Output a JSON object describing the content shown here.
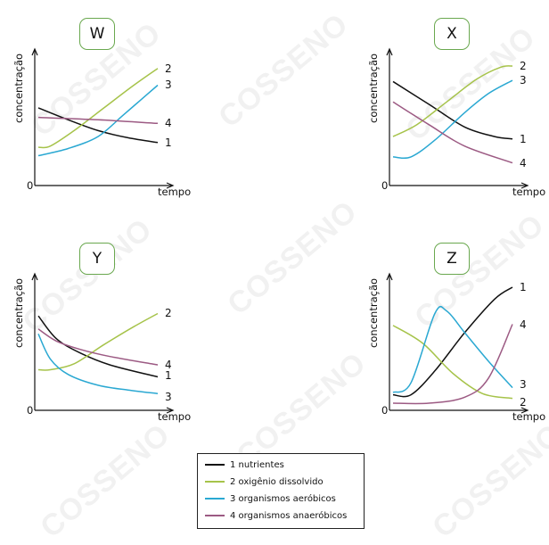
{
  "watermark": "COSSENO",
  "axis": {
    "ylabel": "concentração",
    "xlabel": "tempo",
    "origin": "0"
  },
  "colors": {
    "1": "#111111",
    "2": "#a6c34a",
    "3": "#2aa8d2",
    "4": "#9c5a83",
    "badge_border": "#6aa84f"
  },
  "legend": [
    {
      "id": "1",
      "label": "1 nutrientes"
    },
    {
      "id": "2",
      "label": "2 oxigênio dissolvido"
    },
    {
      "id": "3",
      "label": "3 organismos aeróbicos"
    },
    {
      "id": "4",
      "label": "4 organismos anaeróbicos"
    }
  ],
  "chart_data": [
    {
      "type": "line",
      "title": "W",
      "xlabel": "tempo",
      "ylabel": "concentração",
      "xlim": [
        0,
        100
      ],
      "ylim": [
        0,
        100
      ],
      "grid": false,
      "series": [
        {
          "name": "1",
          "x": [
            0,
            25,
            50,
            75,
            100
          ],
          "y": [
            62,
            52,
            43,
            37,
            33
          ]
        },
        {
          "name": "2",
          "x": [
            0,
            10,
            30,
            55,
            80,
            100
          ],
          "y": [
            29,
            30,
            43,
            62,
            81,
            95
          ]
        },
        {
          "name": "3",
          "x": [
            0,
            25,
            50,
            70,
            85,
            100
          ],
          "y": [
            22,
            28,
            38,
            55,
            68,
            81
          ]
        },
        {
          "name": "4",
          "x": [
            0,
            50,
            100
          ],
          "y": [
            54,
            52,
            49
          ]
        }
      ]
    },
    {
      "type": "line",
      "title": "X",
      "xlabel": "tempo",
      "ylabel": "concentração",
      "xlim": [
        0,
        100
      ],
      "ylim": [
        0,
        100
      ],
      "grid": false,
      "series": [
        {
          "name": "1",
          "x": [
            0,
            30,
            60,
            85,
            100
          ],
          "y": [
            84,
            65,
            46,
            38,
            36
          ]
        },
        {
          "name": "2",
          "x": [
            0,
            20,
            45,
            70,
            90,
            100
          ],
          "y": [
            38,
            48,
            67,
            86,
            96,
            97
          ]
        },
        {
          "name": "3",
          "x": [
            0,
            15,
            35,
            60,
            80,
            100
          ],
          "y": [
            21,
            21,
            35,
            58,
            74,
            85
          ]
        },
        {
          "name": "4",
          "x": [
            0,
            30,
            60,
            100
          ],
          "y": [
            67,
            48,
            30,
            16
          ]
        }
      ]
    },
    {
      "type": "line",
      "title": "Y",
      "xlabel": "tempo",
      "ylabel": "concentração",
      "xlim": [
        0,
        100
      ],
      "ylim": [
        0,
        100
      ],
      "grid": false,
      "series": [
        {
          "name": "1",
          "x": [
            0,
            15,
            35,
            60,
            100
          ],
          "y": [
            76,
            57,
            45,
            35,
            25
          ]
        },
        {
          "name": "2",
          "x": [
            0,
            10,
            30,
            55,
            80,
            100
          ],
          "y": [
            31,
            31,
            36,
            52,
            67,
            78
          ]
        },
        {
          "name": "3",
          "x": [
            0,
            10,
            25,
            50,
            75,
            100
          ],
          "y": [
            61,
            40,
            27,
            18,
            14,
            11
          ]
        },
        {
          "name": "4",
          "x": [
            0,
            15,
            35,
            60,
            100
          ],
          "y": [
            65,
            55,
            48,
            42,
            35
          ]
        }
      ]
    },
    {
      "type": "line",
      "title": "Z",
      "xlabel": "tempo",
      "ylabel": "concentração",
      "xlim": [
        0,
        100
      ],
      "ylim": [
        0,
        100
      ],
      "grid": false,
      "series": [
        {
          "name": "1",
          "x": [
            0,
            15,
            35,
            60,
            85,
            100
          ],
          "y": [
            10,
            10,
            30,
            62,
            90,
            100
          ]
        },
        {
          "name": "2",
          "x": [
            0,
            25,
            50,
            75,
            100
          ],
          "y": [
            68,
            53,
            28,
            11,
            7
          ]
        },
        {
          "name": "3",
          "x": [
            0,
            15,
            35,
            45,
            60,
            80,
            100
          ],
          "y": [
            12,
            20,
            78,
            80,
            62,
            38,
            16
          ]
        },
        {
          "name": "4",
          "x": [
            0,
            30,
            60,
            80,
            100
          ],
          "y": [
            3,
            3,
            8,
            24,
            69
          ]
        }
      ]
    }
  ]
}
